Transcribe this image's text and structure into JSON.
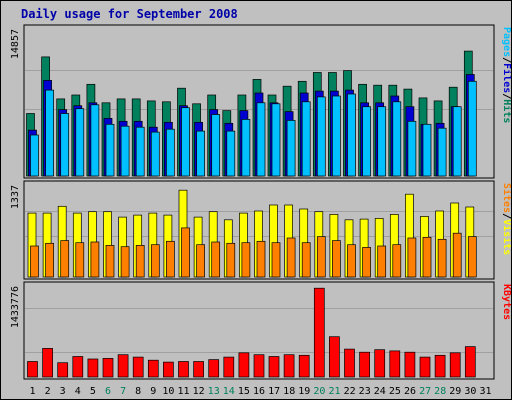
{
  "title": "Daily usage for September 2008",
  "colors": {
    "background": "#c0c0c0",
    "title": "#0000a8",
    "hits": "#00805c",
    "files": "#0000d0",
    "pages": "#00c0ff",
    "visits": "#ffff00",
    "sites": "#ff8000",
    "kbytes": "#ff0000",
    "weekday_label": "#000000",
    "weekend_label": "#00805c"
  },
  "chart_data": [
    {
      "type": "bar",
      "panel": "pages-files-hits",
      "ymax_label": "14857",
      "ylim": [
        0,
        14857
      ],
      "legend": [
        {
          "text": "Pages",
          "color": "#00c0ff"
        },
        {
          "text": "/",
          "color": "#000000"
        },
        {
          "text": "Files",
          "color": "#0000d0"
        },
        {
          "text": "/",
          "color": "#000000"
        },
        {
          "text": "Hits",
          "color": "#00805c"
        }
      ],
      "categories": [
        "1",
        "2",
        "3",
        "4",
        "5",
        "6",
        "7",
        "8",
        "9",
        "10",
        "11",
        "12",
        "13",
        "14",
        "15",
        "16",
        "17",
        "18",
        "19",
        "20",
        "21",
        "22",
        "23",
        "24",
        "25",
        "26",
        "27",
        "28",
        "29",
        "30",
        "31"
      ],
      "series": [
        {
          "name": "Hits",
          "values": [
            6400,
            12200,
            7900,
            8300,
            9400,
            7500,
            7900,
            7900,
            7700,
            7600,
            9000,
            7400,
            8300,
            6700,
            8300,
            9900,
            8300,
            9200,
            9700,
            10600,
            10600,
            10800,
            9400,
            9300,
            9300,
            8900,
            8000,
            7700,
            9100,
            12800,
            0
          ]
        },
        {
          "name": "Files",
          "values": [
            4700,
            9800,
            6800,
            7200,
            7500,
            5900,
            5600,
            5600,
            5000,
            5500,
            7200,
            5500,
            6800,
            5400,
            6700,
            8500,
            7500,
            6600,
            8500,
            8700,
            8700,
            8800,
            7500,
            7500,
            8200,
            7100,
            5300,
            5400,
            7100,
            10400,
            0
          ]
        },
        {
          "name": "Pages",
          "values": [
            4200,
            8800,
            6400,
            6900,
            7300,
            5300,
            5100,
            5000,
            4500,
            4800,
            7000,
            4600,
            6300,
            4600,
            5800,
            7500,
            7400,
            5700,
            7600,
            8100,
            8200,
            8400,
            7100,
            7100,
            7600,
            5600,
            5300,
            4900,
            7100,
            9700,
            0
          ]
        }
      ]
    },
    {
      "type": "bar",
      "panel": "sites-visits",
      "ymax_label": "1337",
      "ylim": [
        0,
        1337
      ],
      "legend": [
        {
          "text": "Sites",
          "color": "#ff8000"
        },
        {
          "text": "/",
          "color": "#000000"
        },
        {
          "text": "Visits",
          "color": "#ffff00"
        }
      ],
      "categories": [
        "1",
        "2",
        "3",
        "4",
        "5",
        "6",
        "7",
        "8",
        "9",
        "10",
        "11",
        "12",
        "13",
        "14",
        "15",
        "16",
        "17",
        "18",
        "19",
        "20",
        "21",
        "22",
        "23",
        "24",
        "25",
        "26",
        "27",
        "28",
        "29",
        "30",
        "31"
      ],
      "series": [
        {
          "name": "Visits",
          "values": [
            950,
            950,
            1050,
            950,
            970,
            970,
            890,
            920,
            950,
            920,
            1290,
            890,
            970,
            850,
            950,
            980,
            1070,
            1070,
            1010,
            970,
            930,
            850,
            860,
            870,
            930,
            1230,
            900,
            980,
            1100,
            1040,
            0
          ]
        },
        {
          "name": "Sites",
          "values": [
            460,
            500,
            540,
            510,
            520,
            470,
            450,
            470,
            480,
            530,
            730,
            480,
            520,
            500,
            510,
            530,
            510,
            580,
            510,
            600,
            540,
            480,
            440,
            460,
            480,
            580,
            590,
            560,
            650,
            600,
            0
          ]
        }
      ]
    },
    {
      "type": "bar",
      "panel": "kbytes",
      "ymax_label": "1433776",
      "ylim": [
        0,
        1433776
      ],
      "legend": [
        {
          "text": "KBytes",
          "color": "#ff0000"
        }
      ],
      "categories": [
        "1",
        "2",
        "3",
        "4",
        "5",
        "6",
        "7",
        "8",
        "9",
        "10",
        "11",
        "12",
        "13",
        "14",
        "15",
        "16",
        "17",
        "18",
        "19",
        "20",
        "21",
        "22",
        "23",
        "24",
        "25",
        "26",
        "27",
        "28",
        "29",
        "30",
        "31"
      ],
      "series": [
        {
          "name": "KBytes",
          "values": [
            250000,
            460000,
            230000,
            330000,
            290000,
            300000,
            360000,
            320000,
            270000,
            240000,
            250000,
            250000,
            280000,
            320000,
            390000,
            360000,
            330000,
            360000,
            350000,
            1430000,
            650000,
            450000,
            400000,
            440000,
            420000,
            400000,
            320000,
            350000,
            390000,
            490000,
            0
          ]
        }
      ]
    }
  ],
  "x_labels": [
    {
      "text": "1",
      "weekend": false
    },
    {
      "text": "2",
      "weekend": false
    },
    {
      "text": "3",
      "weekend": false
    },
    {
      "text": "4",
      "weekend": false
    },
    {
      "text": "5",
      "weekend": false
    },
    {
      "text": "6",
      "weekend": true
    },
    {
      "text": "7",
      "weekend": true
    },
    {
      "text": "8",
      "weekend": false
    },
    {
      "text": "9",
      "weekend": false
    },
    {
      "text": "10",
      "weekend": false
    },
    {
      "text": "11",
      "weekend": false
    },
    {
      "text": "12",
      "weekend": false
    },
    {
      "text": "13",
      "weekend": true
    },
    {
      "text": "14",
      "weekend": true
    },
    {
      "text": "15",
      "weekend": false
    },
    {
      "text": "16",
      "weekend": false
    },
    {
      "text": "17",
      "weekend": false
    },
    {
      "text": "18",
      "weekend": false
    },
    {
      "text": "19",
      "weekend": false
    },
    {
      "text": "20",
      "weekend": true
    },
    {
      "text": "21",
      "weekend": true
    },
    {
      "text": "22",
      "weekend": false
    },
    {
      "text": "23",
      "weekend": false
    },
    {
      "text": "24",
      "weekend": false
    },
    {
      "text": "25",
      "weekend": false
    },
    {
      "text": "26",
      "weekend": false
    },
    {
      "text": "27",
      "weekend": true
    },
    {
      "text": "28",
      "weekend": true
    },
    {
      "text": "29",
      "weekend": false
    },
    {
      "text": "30",
      "weekend": false
    },
    {
      "text": "31",
      "weekend": false
    }
  ]
}
